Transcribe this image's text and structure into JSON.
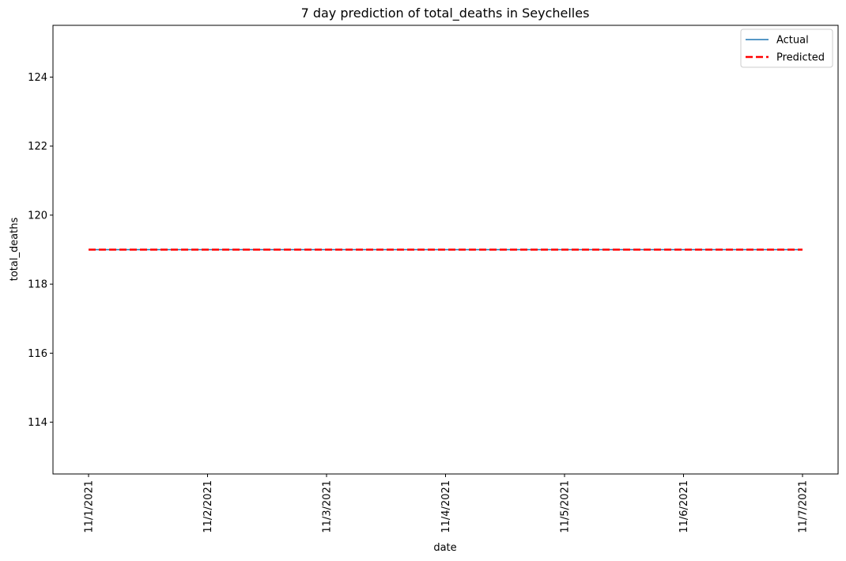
{
  "chart_data": {
    "type": "line",
    "title": "7 day prediction of total_deaths in Seychelles",
    "xlabel": "date",
    "ylabel": "total_deaths",
    "categories": [
      "11/1/2021",
      "11/2/2021",
      "11/3/2021",
      "11/4/2021",
      "11/5/2021",
      "11/6/2021",
      "11/7/2021"
    ],
    "series": [
      {
        "name": "Actual",
        "values": [
          119,
          119,
          119,
          119,
          119,
          119,
          119
        ],
        "color": "#1f77b4",
        "style": "solid"
      },
      {
        "name": "Predicted",
        "values": [
          119,
          119,
          119,
          119,
          119,
          119,
          119
        ],
        "color": "#ff0000",
        "style": "dashed"
      }
    ],
    "ylim": [
      112.5,
      125.5
    ],
    "yticks": [
      114,
      116,
      118,
      120,
      122,
      124
    ],
    "grid": false,
    "legend_position": "top-right"
  }
}
